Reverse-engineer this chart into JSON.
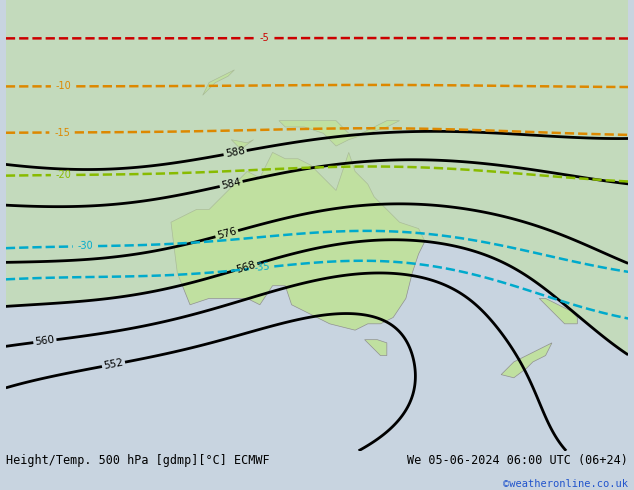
{
  "title_left": "Height/Temp. 500 hPa [gdmp][°C] ECMWF",
  "title_right": "We 05-06-2024 06:00 UTC (06+24)",
  "watermark": "©weatheronline.co.uk",
  "bg_color": "#c8d4e0",
  "land_color": "#b8d4a0",
  "australia_green": "#c0e0a0",
  "contour_color_black": "#000000",
  "contour_color_red": "#cc0000",
  "contour_color_orange": "#dd8800",
  "contour_color_green_dashed": "#88bb00",
  "contour_color_cyan": "#00aacc",
  "figsize": [
    6.34,
    4.9
  ],
  "dpi": 100,
  "label_fontsize": 7.5
}
